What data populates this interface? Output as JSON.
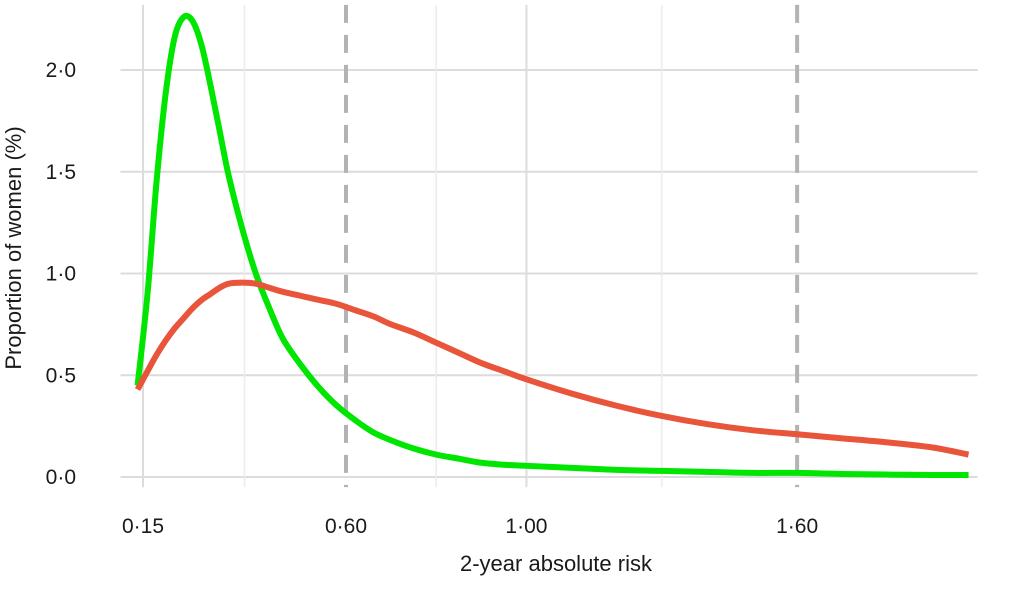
{
  "chart_data": {
    "type": "line",
    "title": "",
    "xlabel": "2-year absolute risk",
    "ylabel": "Proportion of women (%)",
    "xlim": [
      0.1,
      2.0
    ],
    "ylim": [
      -0.05,
      2.32
    ],
    "x_ticks": [
      {
        "value": 0.15,
        "label": "0·15"
      },
      {
        "value": 0.6,
        "label": "0·60"
      },
      {
        "value": 1.0,
        "label": "1·00"
      },
      {
        "value": 1.6,
        "label": "1·60"
      }
    ],
    "y_ticks": [
      {
        "value": 0.0,
        "label": "0·0"
      },
      {
        "value": 0.5,
        "label": "0·5"
      },
      {
        "value": 1.0,
        "label": "1·0"
      },
      {
        "value": 1.5,
        "label": "1·5"
      },
      {
        "value": 2.0,
        "label": "2·0"
      }
    ],
    "x_minor_gridlines": [
      0.375,
      0.8,
      1.3
    ],
    "reference_lines": [
      {
        "x": 0.6,
        "style": "dashed",
        "color": "#b3b3b3"
      },
      {
        "x": 1.6,
        "style": "dashed",
        "color": "#b3b3b3"
      }
    ],
    "grid": true,
    "series": [
      {
        "color": "#00e600",
        "x": [
          0.138,
          0.16,
          0.18,
          0.2,
          0.22,
          0.24,
          0.26,
          0.28,
          0.3,
          0.32,
          0.34,
          0.37,
          0.4,
          0.43,
          0.46,
          0.5,
          0.54,
          0.58,
          0.62,
          0.66,
          0.7,
          0.75,
          0.8,
          0.85,
          0.9,
          0.95,
          1.0,
          1.1,
          1.2,
          1.3,
          1.4,
          1.5,
          1.6,
          1.7,
          1.8,
          1.9,
          1.98
        ],
        "y": [
          0.45,
          0.9,
          1.45,
          1.88,
          2.16,
          2.26,
          2.24,
          2.12,
          1.92,
          1.7,
          1.48,
          1.22,
          1.0,
          0.83,
          0.68,
          0.55,
          0.44,
          0.35,
          0.28,
          0.22,
          0.18,
          0.14,
          0.11,
          0.09,
          0.07,
          0.06,
          0.055,
          0.045,
          0.035,
          0.03,
          0.025,
          0.02,
          0.02,
          0.015,
          0.012,
          0.01,
          0.01
        ]
      },
      {
        "color": "#e8553a",
        "x": [
          0.138,
          0.16,
          0.18,
          0.2,
          0.22,
          0.24,
          0.26,
          0.28,
          0.3,
          0.32,
          0.34,
          0.37,
          0.4,
          0.43,
          0.46,
          0.5,
          0.54,
          0.58,
          0.62,
          0.66,
          0.7,
          0.75,
          0.8,
          0.85,
          0.9,
          0.95,
          1.0,
          1.1,
          1.2,
          1.3,
          1.4,
          1.5,
          1.6,
          1.7,
          1.8,
          1.9,
          1.98
        ],
        "y": [
          0.43,
          0.52,
          0.6,
          0.67,
          0.73,
          0.78,
          0.83,
          0.87,
          0.9,
          0.93,
          0.95,
          0.955,
          0.95,
          0.93,
          0.91,
          0.89,
          0.87,
          0.85,
          0.82,
          0.79,
          0.75,
          0.71,
          0.66,
          0.61,
          0.56,
          0.52,
          0.48,
          0.41,
          0.35,
          0.3,
          0.26,
          0.23,
          0.21,
          0.19,
          0.17,
          0.145,
          0.11
        ]
      }
    ]
  }
}
